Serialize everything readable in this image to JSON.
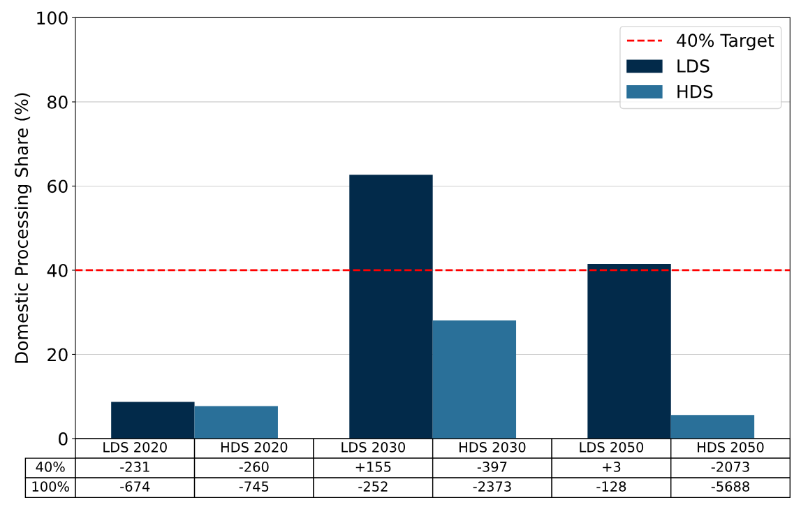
{
  "chart_data": {
    "type": "bar",
    "ylabel": "Domestic Processing Share (%)",
    "categories": [
      null,
      null,
      null
    ],
    "series": [
      {
        "name": "LDS",
        "color": "#022a4a",
        "values": [
          8.7,
          62.7,
          41.5
        ]
      },
      {
        "name": "HDS",
        "color": "#2a7099",
        "values": [
          7.7,
          28.1,
          5.6
        ]
      }
    ],
    "ylim": [
      0,
      100
    ],
    "yticks": [
      0,
      20,
      40,
      60,
      80,
      100
    ],
    "grid": "y",
    "legend": "top right",
    "ref_lines": [
      {
        "axis": "y",
        "value": 40,
        "label": "40% Target",
        "color": "#ff0000",
        "line_style": "dashed"
      }
    ],
    "annotations": [
      "LDS 2020",
      "HDS 2020",
      "LDS 2030",
      "HDS 2030",
      "LDS 2050",
      "HDS 2050",
      "40%",
      "-231",
      "-260",
      "+155",
      "-397",
      "+3",
      "-2073",
      "100%",
      "-674",
      "-745",
      "-252",
      "-2373",
      "-128",
      "-5688"
    ]
  }
}
